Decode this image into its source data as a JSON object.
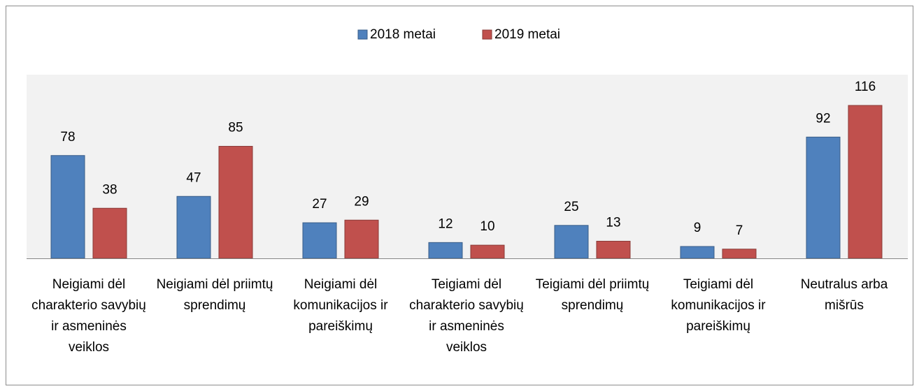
{
  "chart_data": {
    "type": "bar",
    "categories": [
      "Neigiami dėl charakterio savybių ir asmeninės veiklos",
      "Neigiami dėl priimtų sprendimų",
      "Neigiami dėl komunikacijos ir pareiškimų",
      "Teigiami dėl charakterio savybių ir asmeninės veiklos",
      "Teigiami dėl priimtų sprendimų",
      "Teigiami dėl komunikacijos ir pareiškimų",
      "Neutralus arba mišrūs"
    ],
    "series": [
      {
        "name": "2018 metai",
        "color": "#4f81bd",
        "values": [
          78,
          47,
          27,
          12,
          25,
          9,
          92
        ]
      },
      {
        "name": "2019 metai",
        "color": "#c0504d",
        "values": [
          38,
          85,
          29,
          10,
          13,
          7,
          116
        ]
      }
    ],
    "legend": "top"
  }
}
